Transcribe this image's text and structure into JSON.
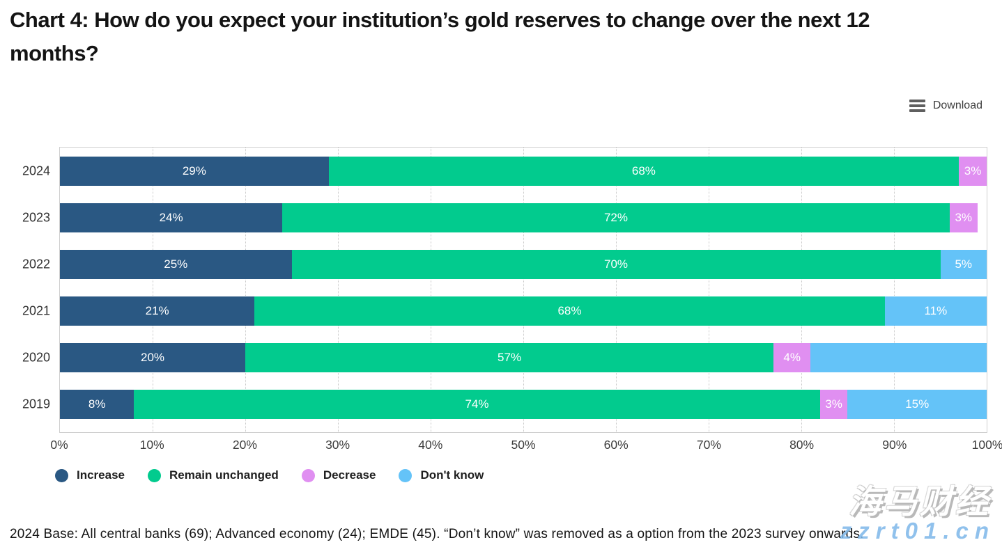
{
  "page": {
    "title": "Chart 4: How do you expect your institution’s gold reserves to change over the next 12 months?",
    "footer": "2024 Base: All central banks (69); Advanced economy (24); EMDE (45). “Don’t know” was removed as a option from the 2023 survey onwards.",
    "watermark": {
      "brand": "海马财经",
      "domain": "zzrt01.cn"
    }
  },
  "toolbar": {
    "download_label": "Download",
    "menu_icon": "hamburger-icon"
  },
  "chart_data": {
    "type": "bar",
    "stacked": true,
    "orientation": "horizontal",
    "title": "Chart 4: How do you expect your institution’s gold reserves to change over the next 12 months?",
    "categories": [
      "2024",
      "2023",
      "2022",
      "2021",
      "2020",
      "2019"
    ],
    "series": [
      {
        "name": "Increase",
        "color": "#2A5883",
        "values": [
          29,
          24,
          25,
          21,
          20,
          8
        ]
      },
      {
        "name": "Remain unchanged",
        "color": "#02CB8E",
        "values": [
          68,
          72,
          70,
          68,
          57,
          74
        ]
      },
      {
        "name": "Decrease",
        "color": "#E08FF1",
        "values": [
          3,
          3,
          0,
          0,
          4,
          3
        ]
      },
      {
        "name": "Don't know",
        "color": "#64C3F8",
        "values": [
          0,
          0,
          5,
          11,
          19,
          15
        ]
      }
    ],
    "bar_labels": [
      [
        "29%",
        "68%",
        "3%",
        ""
      ],
      [
        "24%",
        "72%",
        "3%",
        ""
      ],
      [
        "25%",
        "70%",
        "",
        "5%"
      ],
      [
        "21%",
        "68%",
        "",
        "11%"
      ],
      [
        "20%",
        "57%",
        "4%",
        ""
      ],
      [
        "8%",
        "74%",
        "3%",
        "15%"
      ]
    ],
    "x_ticks": [
      "0%",
      "10%",
      "20%",
      "30%",
      "40%",
      "50%",
      "60%",
      "70%",
      "80%",
      "90%",
      "100%"
    ],
    "xlim": [
      0,
      100
    ],
    "grid": "vertical-dotted",
    "legend_position": "bottom",
    "xlabel": "",
    "ylabel": ""
  }
}
